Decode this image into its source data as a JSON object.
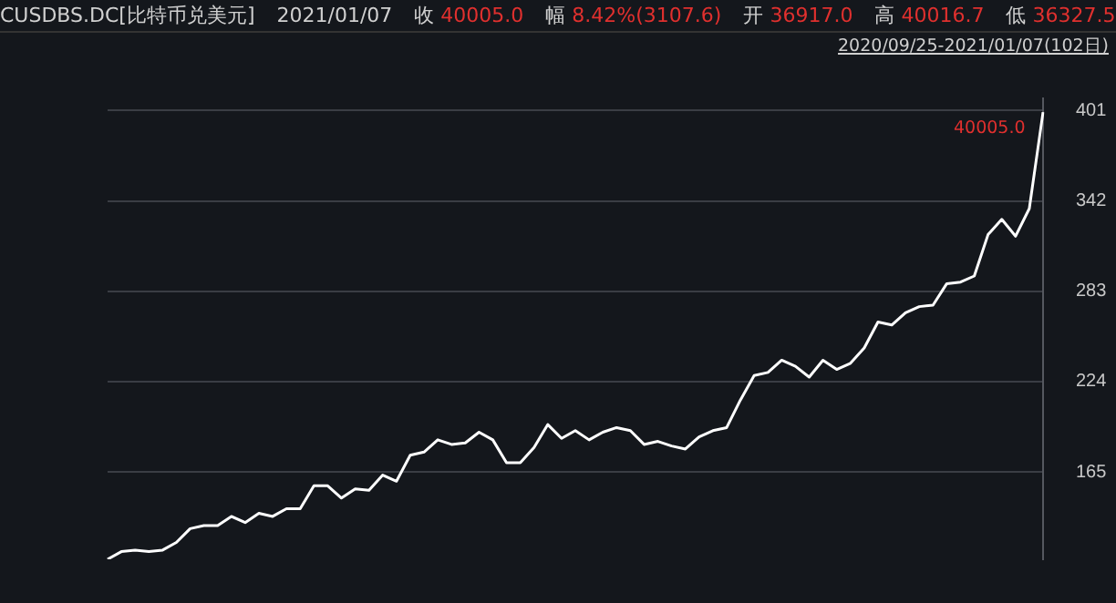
{
  "chart_data": {
    "type": "line",
    "title": "CUSDBS.DC[比特币兑美元]",
    "subtitle": "2020/09/25-2021/01/07(102日)",
    "annotations": [
      "2021/01/07",
      "收 40005.0",
      "幅 8.42%(3107.6)",
      "开 36917.0",
      "高 40016.7",
      "低 36327.5",
      "40005.0"
    ],
    "categories": [
      null,
      null,
      null,
      null,
      null,
      null,
      null,
      null,
      null,
      null,
      null,
      null,
      null,
      null,
      null,
      null,
      null,
      null,
      null,
      null,
      null,
      null,
      null,
      null,
      null,
      null,
      null,
      null,
      null,
      null,
      null,
      null,
      null,
      null,
      null,
      null,
      null,
      null,
      null,
      null,
      null,
      null,
      null,
      null,
      null,
      null,
      null,
      null,
      null,
      null,
      null,
      null,
      null,
      null,
      null,
      null,
      null,
      null,
      null,
      null,
      null,
      null,
      null,
      null,
      null,
      null,
      null,
      null,
      null
    ],
    "series": [
      {
        "color": "#ffffff",
        "values": [
          108,
          113,
          114,
          113,
          114,
          119,
          128,
          130,
          130,
          136,
          132,
          138,
          136,
          141,
          141,
          156,
          156,
          148,
          154,
          153,
          163,
          159,
          176,
          178,
          186,
          183,
          184,
          191,
          186,
          171,
          171,
          181,
          196,
          187,
          192,
          186,
          191,
          194,
          192,
          183,
          185,
          182,
          180,
          188,
          192,
          194,
          212,
          228,
          230,
          238,
          234,
          227,
          238,
          232,
          236,
          246,
          263,
          261,
          269,
          273,
          274,
          288,
          289,
          293,
          320,
          330,
          319,
          337,
          400
        ]
      }
    ],
    "ylim": [
      108,
      409
    ],
    "yticks": [
      165,
      224,
      283,
      342,
      401
    ],
    "tick_labels": "y",
    "grid": "y",
    "legend": false,
    "marker": "none",
    "line_style": "solid"
  }
}
